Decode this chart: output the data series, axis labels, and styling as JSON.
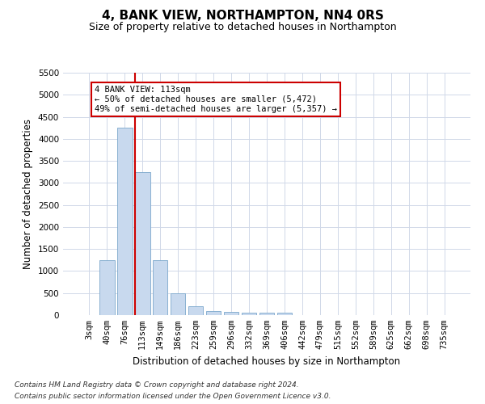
{
  "title": "4, BANK VIEW, NORTHAMPTON, NN4 0RS",
  "subtitle": "Size of property relative to detached houses in Northampton",
  "xlabel": "Distribution of detached houses by size in Northampton",
  "ylabel": "Number of detached properties",
  "categories": [
    "3sqm",
    "40sqm",
    "76sqm",
    "113sqm",
    "149sqm",
    "186sqm",
    "223sqm",
    "259sqm",
    "296sqm",
    "332sqm",
    "369sqm",
    "406sqm",
    "442sqm",
    "479sqm",
    "515sqm",
    "552sqm",
    "589sqm",
    "625sqm",
    "662sqm",
    "698sqm",
    "735sqm"
  ],
  "values": [
    0,
    1250,
    4250,
    3250,
    1250,
    500,
    200,
    100,
    75,
    55,
    50,
    50,
    0,
    0,
    0,
    0,
    0,
    0,
    0,
    0,
    0
  ],
  "bar_color": "#c8d9ee",
  "bar_edge_color": "#7ba7cc",
  "vline_x_index": 3,
  "vline_color": "#cc0000",
  "annotation_text": "4 BANK VIEW: 113sqm\n← 50% of detached houses are smaller (5,472)\n49% of semi-detached houses are larger (5,357) →",
  "annotation_box_color": "#ffffff",
  "annotation_box_edge": "#cc0000",
  "ylim": [
    0,
    5500
  ],
  "yticks": [
    0,
    500,
    1000,
    1500,
    2000,
    2500,
    3000,
    3500,
    4000,
    4500,
    5000,
    5500
  ],
  "footer1": "Contains HM Land Registry data © Crown copyright and database right 2024.",
  "footer2": "Contains public sector information licensed under the Open Government Licence v3.0.",
  "background_color": "#ffffff",
  "grid_color": "#d0d8e8",
  "title_fontsize": 11,
  "subtitle_fontsize": 9,
  "axis_label_fontsize": 8.5,
  "tick_fontsize": 7.5,
  "footer_fontsize": 6.5
}
